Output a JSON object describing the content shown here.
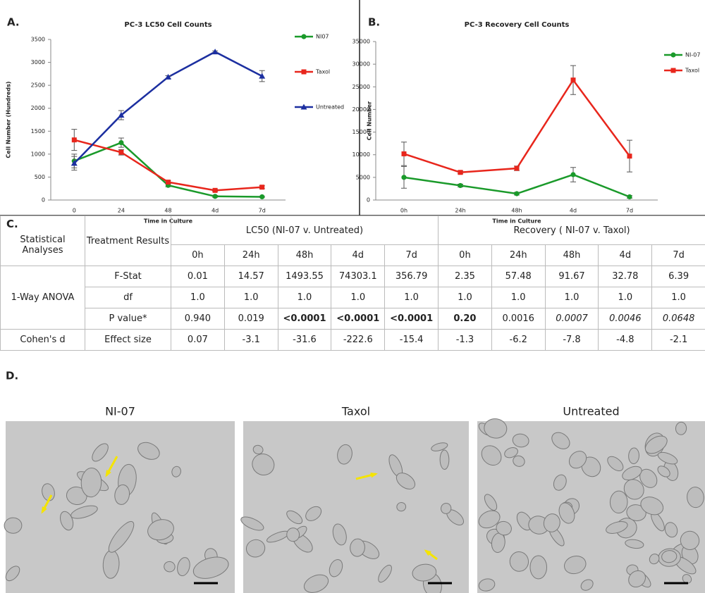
{
  "chart_data": [
    {
      "type": "line",
      "label": "A.",
      "title": "PC-3 LC50 Cell Counts",
      "xlabel": "Time in Culture",
      "ylabel": "Cell Number (Hundreds)",
      "categories": [
        "0",
        "24",
        "48",
        "4d",
        "7d"
      ],
      "series": [
        {
          "name": "NI07",
          "color": "#1a9a2a",
          "marker": "circle",
          "values": [
            850,
            1250,
            320,
            80,
            70
          ],
          "errors": [
            150,
            100,
            30,
            20,
            10
          ]
        },
        {
          "name": "Taxol",
          "color": "#e8261c",
          "marker": "square",
          "values": [
            1310,
            1040,
            390,
            210,
            280
          ],
          "errors": [
            230,
            60,
            30,
            20,
            30
          ]
        },
        {
          "name": "Untreated",
          "color": "#1c2fa0",
          "marker": "triangle",
          "values": [
            800,
            1850,
            2680,
            3230,
            2700
          ],
          "errors": [
            150,
            100,
            30,
            20,
            120
          ]
        }
      ],
      "ylim": [
        0,
        3500
      ],
      "yticks": [
        0,
        500,
        1000,
        1500,
        2000,
        2500,
        3000,
        3500
      ],
      "legend": "right"
    },
    {
      "type": "line",
      "label": "B.",
      "title": "PC-3 Recovery Cell Counts",
      "xlabel": "Time in Culture",
      "ylabel": "Cell Number",
      "categories": [
        "0h",
        "24h",
        "48h",
        "4d",
        "7d"
      ],
      "series": [
        {
          "name": "NI-07",
          "color": "#1a9a2a",
          "marker": "circle",
          "values": [
            5000,
            3200,
            1400,
            5600,
            700
          ],
          "errors": [
            2400,
            300,
            300,
            1600,
            300
          ]
        },
        {
          "name": "Taxol",
          "color": "#e8261c",
          "marker": "square",
          "values": [
            10200,
            6100,
            7000,
            26500,
            9700
          ],
          "errors": [
            2600,
            300,
            500,
            3200,
            3500
          ]
        }
      ],
      "ylim": [
        0,
        35000
      ],
      "yticks": [
        0,
        5000,
        10000,
        15000,
        20000,
        25000,
        30000,
        35000
      ],
      "legend": "right"
    }
  ],
  "table": {
    "label": "C.",
    "corner": "Statistical Analyses",
    "treatment": "Treatment Results",
    "groups": [
      "LC50 (NI-07 v. Untreated)",
      "Recovery ( NI-07 v. Taxol)"
    ],
    "timepoints": [
      "0h",
      "24h",
      "48h",
      "4d",
      "7d",
      "0h",
      "24h",
      "48h",
      "4d",
      "7d"
    ],
    "sections": [
      {
        "name": "1-Way ANOVA",
        "rows": [
          {
            "label": "F-Stat",
            "values": [
              "0.01",
              "14.57",
              "1493.55",
              "74303.1",
              "356.79",
              "2.35",
              "57.48",
              "91.67",
              "32.78",
              "6.39"
            ]
          },
          {
            "label": "df",
            "values": [
              "1.0",
              "1.0",
              "1.0",
              "1.0",
              "1.0",
              "1.0",
              "1.0",
              "1.0",
              "1.0",
              "1.0"
            ]
          },
          {
            "label": "P value*",
            "values": [
              "0.940",
              "0.019",
              "<0.0001",
              "<0.0001",
              "<0.0001",
              "0.20",
              "0.0016",
              "0.0007",
              "0.0046",
              "0.0648"
            ]
          }
        ]
      },
      {
        "name": "Cohen's d",
        "rows": [
          {
            "label": "Effect size",
            "values": [
              "0.07",
              "-3.1",
              "-31.6",
              "-222.6",
              "-15.4",
              "-1.3",
              "-6.2",
              "-7.8",
              "-4.8",
              "-2.1"
            ]
          }
        ]
      }
    ]
  },
  "panel": {
    "label": "D.",
    "images": [
      "NI-07",
      "Taxol",
      "Untreated"
    ]
  }
}
